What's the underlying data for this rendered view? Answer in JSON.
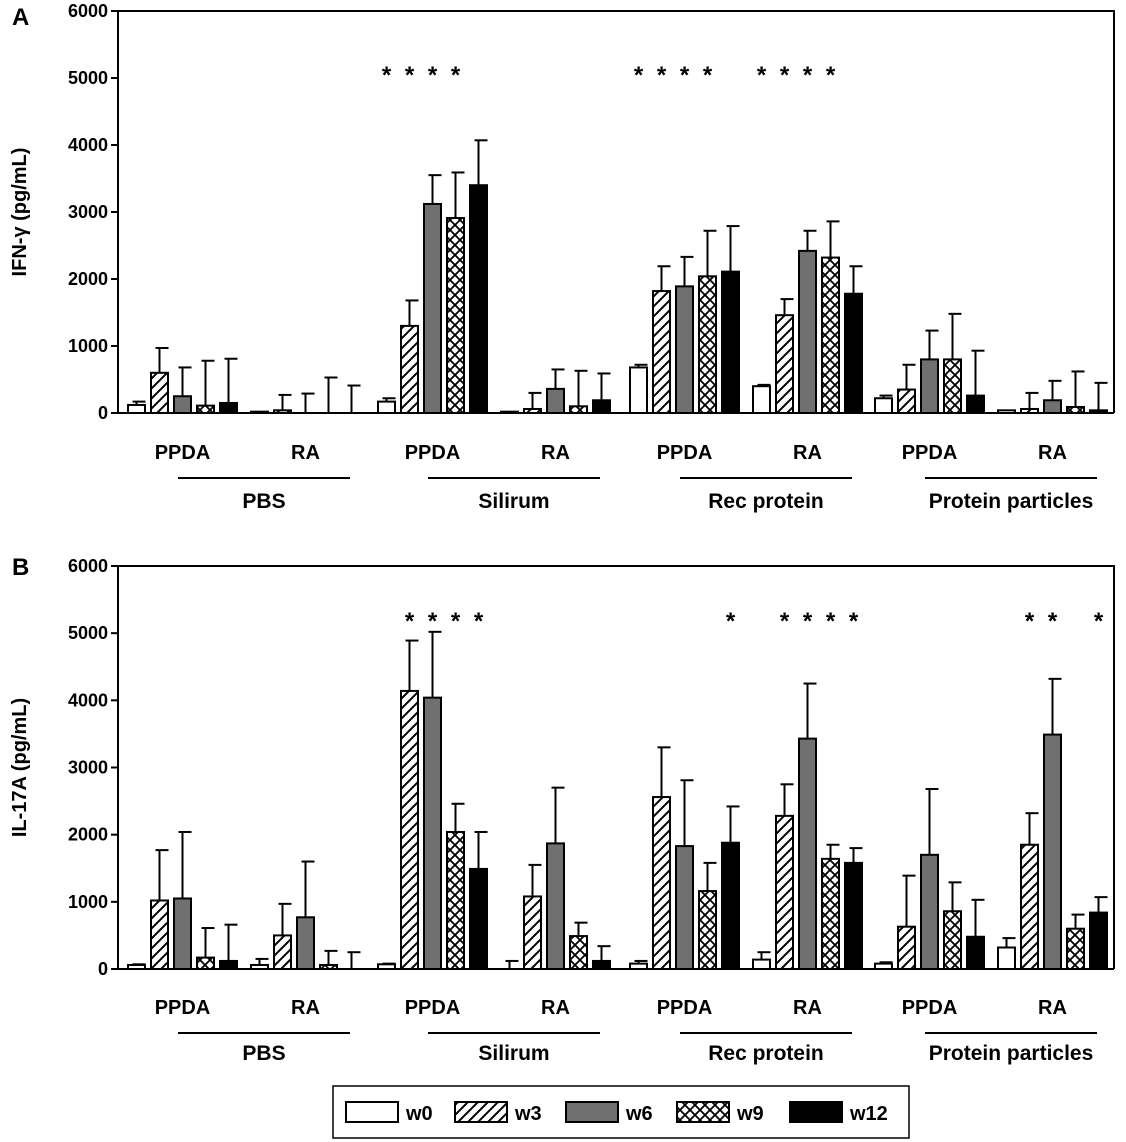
{
  "colors": {
    "w0": "#ffffff",
    "w3": "hatch-diagonal",
    "w6": "#707070",
    "w9": "hatch-cross",
    "w12": "#000000",
    "axis": "#000000"
  },
  "legend": [
    {
      "key": "w0",
      "label": "w0",
      "icon": "open-bar"
    },
    {
      "key": "w3",
      "label": "w3",
      "icon": "diagonal-hatch-bar"
    },
    {
      "key": "w6",
      "label": "w6",
      "icon": "gray-bar"
    },
    {
      "key": "w9",
      "label": "w9",
      "icon": "cross-hatch-bar"
    },
    {
      "key": "w12",
      "label": "w12",
      "icon": "black-bar"
    }
  ],
  "chart_data": [
    {
      "type": "bar",
      "panel_label": "A",
      "ylabel": "IFN-γ (pg/mL)",
      "ylim": [
        0,
        6000
      ],
      "yticks": [
        0,
        1000,
        2000,
        3000,
        4000,
        5000,
        6000
      ],
      "series_names": [
        "w0",
        "w3",
        "w6",
        "w9",
        "w12"
      ],
      "groups": [
        {
          "adjuvant": "PBS",
          "routes": [
            {
              "route": "PPDA",
              "values": [
                120,
                600,
                250,
                110,
                150
              ],
              "errors": [
                170,
                970,
                680,
                780,
                810
              ],
              "stars": [
                null,
                null,
                null,
                null,
                null
              ]
            },
            {
              "route": "RA",
              "values": [
                20,
                40,
                0,
                0,
                0
              ],
              "errors": [
                20,
                270,
                290,
                530,
                410
              ],
              "stars": [
                null,
                null,
                null,
                null,
                null
              ]
            }
          ]
        },
        {
          "adjuvant": "Silirum",
          "routes": [
            {
              "route": "PPDA",
              "values": [
                170,
                1300,
                3120,
                2910,
                3400
              ],
              "errors": [
                220,
                1680,
                3550,
                3590,
                4070
              ],
              "stars": [
                "*",
                "*",
                "*",
                "*",
                null
              ]
            },
            {
              "route": "RA",
              "values": [
                20,
                60,
                360,
                100,
                190
              ],
              "errors": [
                20,
                300,
                650,
                630,
                590
              ],
              "stars": [
                null,
                null,
                null,
                null,
                null
              ]
            }
          ]
        },
        {
          "adjuvant": "Rec protein",
          "routes": [
            {
              "route": "PPDA",
              "values": [
                680,
                1820,
                1890,
                2040,
                2110
              ],
              "errors": [
                720,
                2190,
                2330,
                2720,
                2790
              ],
              "stars": [
                "*",
                "*",
                "*",
                "*",
                null
              ]
            },
            {
              "route": "RA",
              "values": [
                400,
                1460,
                2420,
                2320,
                1780
              ],
              "errors": [
                420,
                1700,
                2720,
                2860,
                2190
              ],
              "stars": [
                "*",
                "*",
                "*",
                "*",
                null
              ]
            }
          ]
        },
        {
          "adjuvant": "Protein particles",
          "routes": [
            {
              "route": "PPDA",
              "values": [
                220,
                350,
                800,
                800,
                260
              ],
              "errors": [
                260,
                720,
                1230,
                1480,
                930
              ],
              "stars": [
                null,
                null,
                null,
                null,
                null
              ]
            },
            {
              "route": "RA",
              "values": [
                40,
                60,
                190,
                90,
                40
              ],
              "errors": [
                40,
                300,
                480,
                620,
                450
              ],
              "stars": [
                null,
                null,
                null,
                null,
                null
              ]
            }
          ]
        }
      ]
    },
    {
      "type": "bar",
      "panel_label": "B",
      "ylabel": "IL-17A (pg/mL)",
      "ylim": [
        0,
        6000
      ],
      "yticks": [
        0,
        1000,
        2000,
        3000,
        4000,
        5000,
        6000
      ],
      "series_names": [
        "w0",
        "w3",
        "w6",
        "w9",
        "w12"
      ],
      "groups": [
        {
          "adjuvant": "PBS",
          "routes": [
            {
              "route": "PPDA",
              "values": [
                60,
                1020,
                1050,
                170,
                120
              ],
              "errors": [
                70,
                1770,
                2040,
                610,
                660
              ],
              "stars": [
                null,
                null,
                null,
                null,
                null
              ]
            },
            {
              "route": "RA",
              "values": [
                60,
                500,
                770,
                60,
                0
              ],
              "errors": [
                150,
                970,
                1600,
                270,
                250
              ],
              "stars": [
                null,
                null,
                null,
                null,
                null
              ]
            }
          ]
        },
        {
          "adjuvant": "Silirum",
          "routes": [
            {
              "route": "PPDA",
              "values": [
                70,
                4140,
                4040,
                2040,
                1490
              ],
              "errors": [
                80,
                4890,
                5020,
                2460,
                2040
              ],
              "stars": [
                null,
                "*",
                "*",
                "*",
                "*"
              ]
            },
            {
              "route": "RA",
              "values": [
                0,
                1080,
                1870,
                490,
                120
              ],
              "errors": [
                120,
                1550,
                2700,
                690,
                340
              ],
              "stars": [
                null,
                null,
                null,
                null,
                null
              ]
            }
          ]
        },
        {
          "adjuvant": "Rec protein",
          "routes": [
            {
              "route": "PPDA",
              "values": [
                80,
                2560,
                1830,
                1160,
                1880
              ],
              "errors": [
                120,
                3300,
                2810,
                1580,
                2420
              ],
              "stars": [
                null,
                null,
                null,
                null,
                "*"
              ]
            },
            {
              "route": "RA",
              "values": [
                140,
                2280,
                3430,
                1640,
                1580
              ],
              "errors": [
                250,
                2750,
                4250,
                1850,
                1800
              ],
              "stars": [
                null,
                "*",
                "*",
                "*",
                "*"
              ]
            }
          ]
        },
        {
          "adjuvant": "Protein particles",
          "routes": [
            {
              "route": "PPDA",
              "values": [
                80,
                630,
                1700,
                860,
                480
              ],
              "errors": [
                100,
                1390,
                2680,
                1290,
                1030
              ],
              "stars": [
                null,
                null,
                null,
                null,
                null
              ]
            },
            {
              "route": "RA",
              "values": [
                320,
                1850,
                3490,
                600,
                840
              ],
              "errors": [
                460,
                2320,
                4320,
                810,
                1070
              ],
              "stars": [
                null,
                "*",
                "*",
                null,
                "*"
              ]
            }
          ]
        }
      ]
    }
  ]
}
